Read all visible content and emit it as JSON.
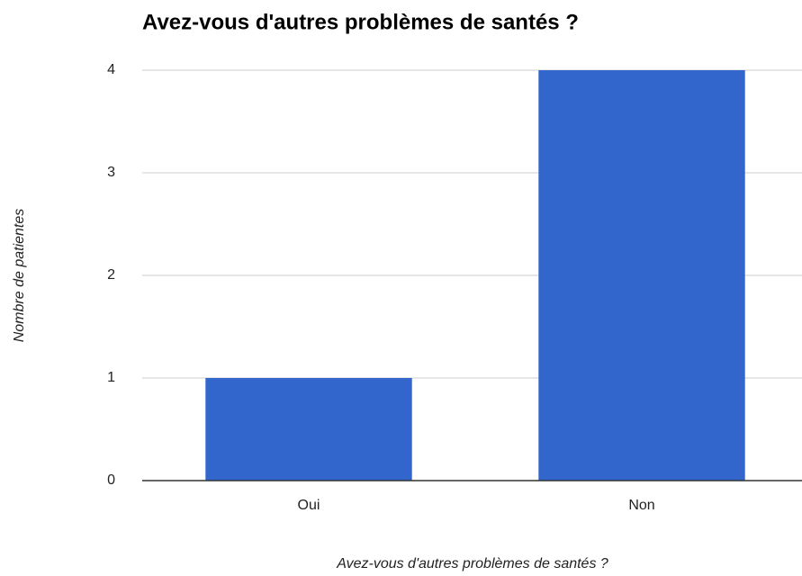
{
  "chart_data": {
    "type": "bar",
    "title": "Avez-vous d'autres problèmes de santés ?",
    "x_label": "Avez-vous d'autres problèmes de santés ?",
    "y_label": "Nombre de patientes",
    "categories": [
      "Oui",
      "Non"
    ],
    "values": [
      1,
      4
    ],
    "color": "#3366cc",
    "ylim": [
      0,
      4
    ],
    "yticks": [
      0,
      1,
      2,
      3,
      4
    ],
    "grid": true
  }
}
